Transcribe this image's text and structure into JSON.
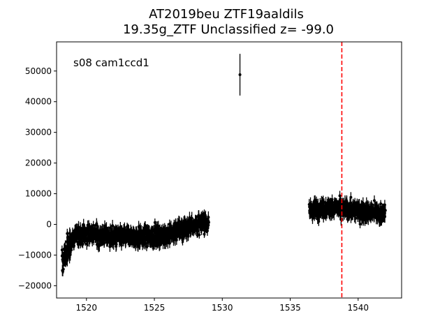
{
  "chart_data": {
    "type": "scatter",
    "title_line1": "AT2019beu  ZTF19aaldils",
    "title_line2": "19.35g_ZTF Unclassified z= -99.0",
    "annotation": "s08 cam1ccd1",
    "xlabel": "",
    "ylabel": "",
    "xlim": [
      1517.8,
      1543.2
    ],
    "ylim": [
      -24000,
      59500
    ],
    "x_ticks": [
      1520,
      1525,
      1530,
      1535,
      1540
    ],
    "y_ticks": [
      -20000,
      -10000,
      0,
      10000,
      20000,
      30000,
      40000,
      50000
    ],
    "grid": false,
    "vline": {
      "x": 1538.8,
      "color": "#ff0000",
      "style": "dashed"
    },
    "point_color": "#000000",
    "series": [
      {
        "segment": "early",
        "x_range": [
          1518.2,
          1529.0
        ],
        "trend_y": [
          [
            1518.2,
            -12500
          ],
          [
            1518.6,
            -8000
          ],
          [
            1519.2,
            -3500
          ],
          [
            1520.0,
            -3000
          ],
          [
            1522.0,
            -4000
          ],
          [
            1524.0,
            -4000
          ],
          [
            1526.0,
            -3500
          ],
          [
            1527.0,
            -1500
          ],
          [
            1528.0,
            0
          ],
          [
            1529.0,
            500
          ]
        ],
        "scatter": 2500,
        "yerr": 1600
      },
      {
        "segment": "outlier",
        "points": [
          {
            "x": 1531.3,
            "y": 48800,
            "yerr": 6800
          }
        ]
      },
      {
        "segment": "late",
        "x_range": [
          1536.4,
          1542.0
        ],
        "trend_y": [
          [
            1536.4,
            4800
          ],
          [
            1538.0,
            5500
          ],
          [
            1540.0,
            4500
          ],
          [
            1542.0,
            3500
          ]
        ],
        "scatter": 2300,
        "yerr": 1600
      }
    ]
  }
}
